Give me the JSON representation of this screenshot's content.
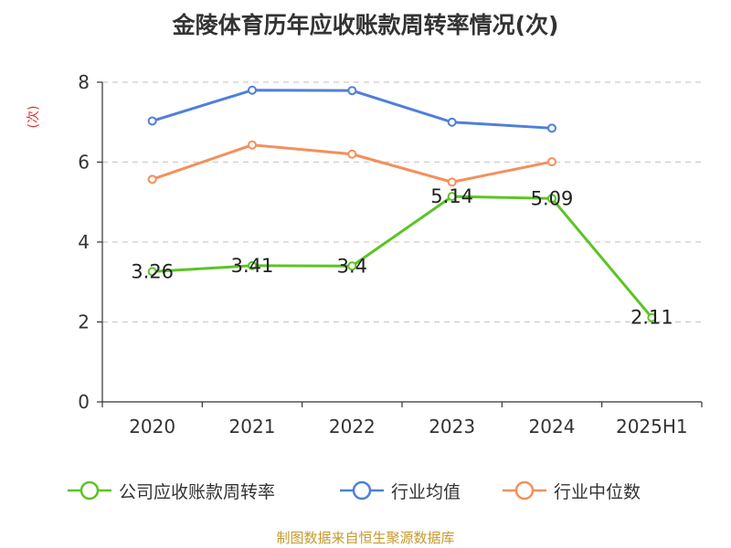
{
  "chart_data": {
    "type": "line",
    "title": "金陵体育历年应收账款周转率情况(次)",
    "ylabel": "(次)",
    "categories": [
      "2020",
      "2021",
      "2022",
      "2023",
      "2024",
      "2025H1"
    ],
    "ylim": [
      0,
      8
    ],
    "yticks": [
      0,
      2,
      4,
      6,
      8
    ],
    "grid": true,
    "legend_position": "bottom",
    "series": [
      {
        "name": "公司应收账款周转率",
        "color": "#5bc424",
        "values": [
          3.26,
          3.41,
          3.4,
          5.14,
          5.09,
          2.11
        ],
        "labels": [
          "3.26",
          "3.41",
          "3.4",
          "5.14",
          "5.09",
          "2.11"
        ]
      },
      {
        "name": "行业均值",
        "color": "#4f7fd9",
        "values": [
          7.03,
          7.8,
          7.79,
          7.0,
          6.85,
          null
        ]
      },
      {
        "name": "行业中位数",
        "color": "#f58f5b",
        "values": [
          5.57,
          6.43,
          6.2,
          5.5,
          6.01,
          null
        ]
      }
    ]
  },
  "source": "制图数据来自恒生聚源数据库"
}
